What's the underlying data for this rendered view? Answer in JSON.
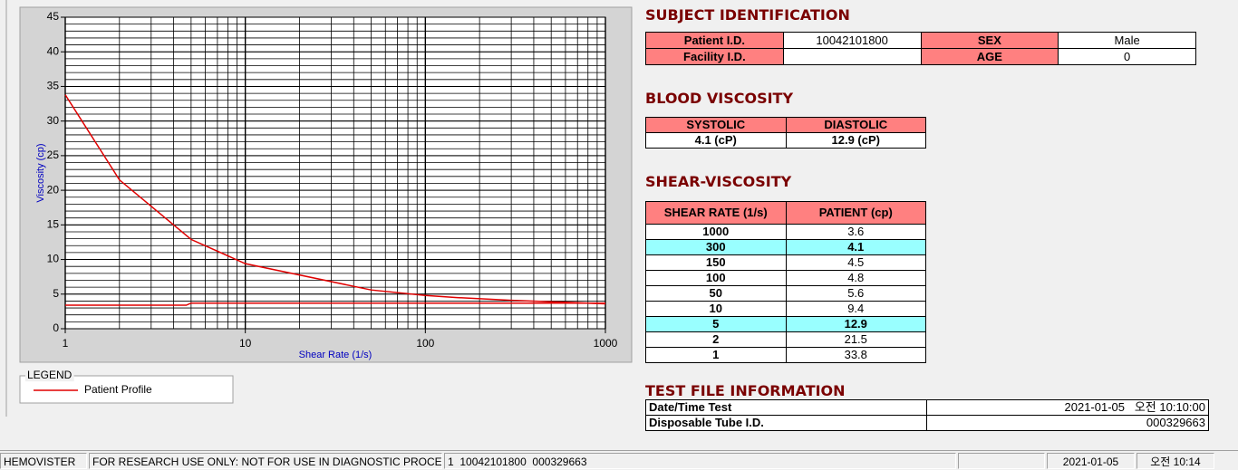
{
  "chart_data": {
    "type": "line",
    "x_label": "Shear Rate (1/s)",
    "y_label": "Viscosity (cp)",
    "legend_title": "LEGEND",
    "xlog": true,
    "grid": true,
    "minor_grid": true,
    "xlim": [
      1,
      1000
    ],
    "xticks": [
      1,
      10,
      100,
      1000
    ],
    "ylim": [
      0,
      45
    ],
    "yticks": [
      0,
      5,
      10,
      15,
      20,
      25,
      30,
      35,
      40,
      45
    ],
    "series": [
      {
        "name": "Patient Profile",
        "color": "#e00000",
        "x": [
          1,
          2,
          5,
          10,
          50,
          100,
          150,
          300,
          1000
        ],
        "values": [
          33.8,
          21.5,
          12.9,
          9.4,
          5.6,
          4.8,
          4.5,
          4.1,
          3.6
        ]
      },
      {
        "color": "#e00000",
        "x": [
          1,
          4.7,
          5,
          1000
        ],
        "values": [
          3.4,
          3.4,
          3.7,
          3.7
        ]
      }
    ]
  },
  "subject_identification": {
    "title": "SUBJECT IDENTIFICATION",
    "rows": [
      [
        "Patient I.D.",
        "10042101800",
        "SEX",
        "Male"
      ],
      [
        "Facility I.D.",
        null,
        "AGE",
        "0"
      ]
    ]
  },
  "blood_viscosity": {
    "title": "BLOOD VISCOSITY",
    "headers": [
      "SYSTOLIC",
      "DIASTOLIC"
    ],
    "values": [
      "4.1 (cP)",
      "12.9 (cP)"
    ]
  },
  "shear_viscosity": {
    "title": "SHEAR-VISCOSITY",
    "headers": [
      "SHEAR RATE (1/s)",
      "PATIENT (cp)"
    ],
    "rows": [
      {
        "rate": 1000,
        "patient": 3.6
      },
      {
        "rate": 300,
        "patient": 4.1,
        "highlight": true
      },
      {
        "rate": 150,
        "patient": 4.5
      },
      {
        "rate": 100,
        "patient": 4.8
      },
      {
        "rate": 50,
        "patient": 5.6
      },
      {
        "rate": 10,
        "patient": 9.4
      },
      {
        "rate": 5,
        "patient": 12.9,
        "highlight": true
      },
      {
        "rate": 2,
        "patient": 21.5
      },
      {
        "rate": 1,
        "patient": 33.8
      }
    ]
  },
  "test_file_information": {
    "title": "TEST FILE INFORMATION",
    "rows": [
      [
        "Date/Time Test",
        "2021-01-05   오전 10:10:00"
      ],
      [
        "Disposable Tube I.D.",
        "000329663"
      ]
    ]
  },
  "status_bar": [
    "HEMOVISTER",
    "FOR RESEARCH USE ONLY: NOT FOR USE IN DIAGNOSTIC PROCEDURES",
    "1  10042101800  000329663",
    null,
    "2021-01-05",
    "오전 10:14"
  ]
}
